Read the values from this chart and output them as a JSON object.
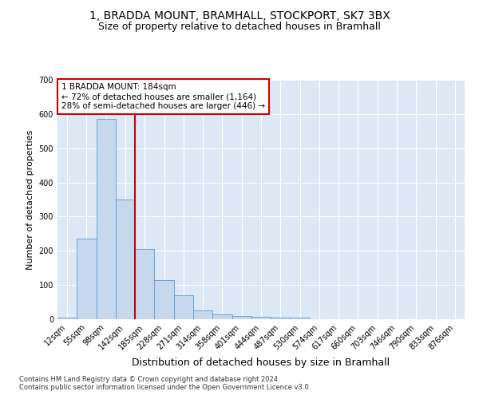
{
  "title_line1": "1, BRADDA MOUNT, BRAMHALL, STOCKPORT, SK7 3BX",
  "title_line2": "Size of property relative to detached houses in Bramhall",
  "xlabel": "Distribution of detached houses by size in Bramhall",
  "ylabel": "Number of detached properties",
  "footnote": "Contains HM Land Registry data © Crown copyright and database right 2024.\nContains public sector information licensed under the Open Government Licence v3.0.",
  "bin_labels": [
    "12sqm",
    "55sqm",
    "98sqm",
    "142sqm",
    "185sqm",
    "228sqm",
    "271sqm",
    "314sqm",
    "358sqm",
    "401sqm",
    "444sqm",
    "487sqm",
    "530sqm",
    "574sqm",
    "617sqm",
    "660sqm",
    "703sqm",
    "746sqm",
    "790sqm",
    "833sqm",
    "876sqm"
  ],
  "bar_values": [
    5,
    235,
    585,
    350,
    205,
    115,
    70,
    25,
    15,
    10,
    7,
    5,
    5,
    0,
    0,
    0,
    0,
    0,
    0,
    0,
    0
  ],
  "bar_color": "#c5d8ee",
  "bar_edge_color": "#5b9bd5",
  "red_line_x": 3.5,
  "annotation_line1": "1 BRADDA MOUNT: 184sqm",
  "annotation_line2": "← 72% of detached houses are smaller (1,164)",
  "annotation_line3": "28% of semi-detached houses are larger (446) →",
  "annotation_box_color": "#ffffff",
  "annotation_box_edge": "#cc0000",
  "ylim": [
    0,
    700
  ],
  "yticks": [
    0,
    100,
    200,
    300,
    400,
    500,
    600,
    700
  ],
  "background_color": "#dce8f5",
  "grid_color": "#ffffff",
  "title_fontsize": 10,
  "subtitle_fontsize": 9,
  "ylabel_fontsize": 8,
  "xlabel_fontsize": 9,
  "tick_fontsize": 7,
  "annot_fontsize": 7.5,
  "footnote_fontsize": 6
}
